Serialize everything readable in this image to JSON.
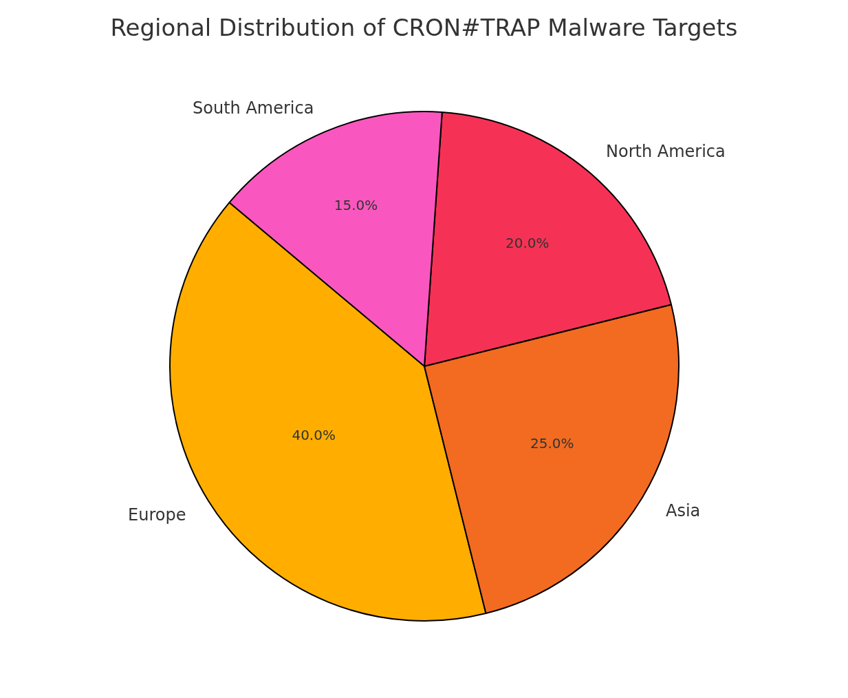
{
  "chart_data": {
    "type": "pie",
    "title": "Regional Distribution of CRON#TRAP Malware Targets",
    "categories": [
      "Europe",
      "Asia",
      "North America",
      "South America"
    ],
    "values": [
      40,
      25,
      20,
      15
    ],
    "value_labels": [
      "40.0%",
      "25.0%",
      "20.0%",
      "15.0%"
    ],
    "colors": [
      "#ffae00",
      "#f26b21",
      "#f53255",
      "#f957bf"
    ]
  }
}
